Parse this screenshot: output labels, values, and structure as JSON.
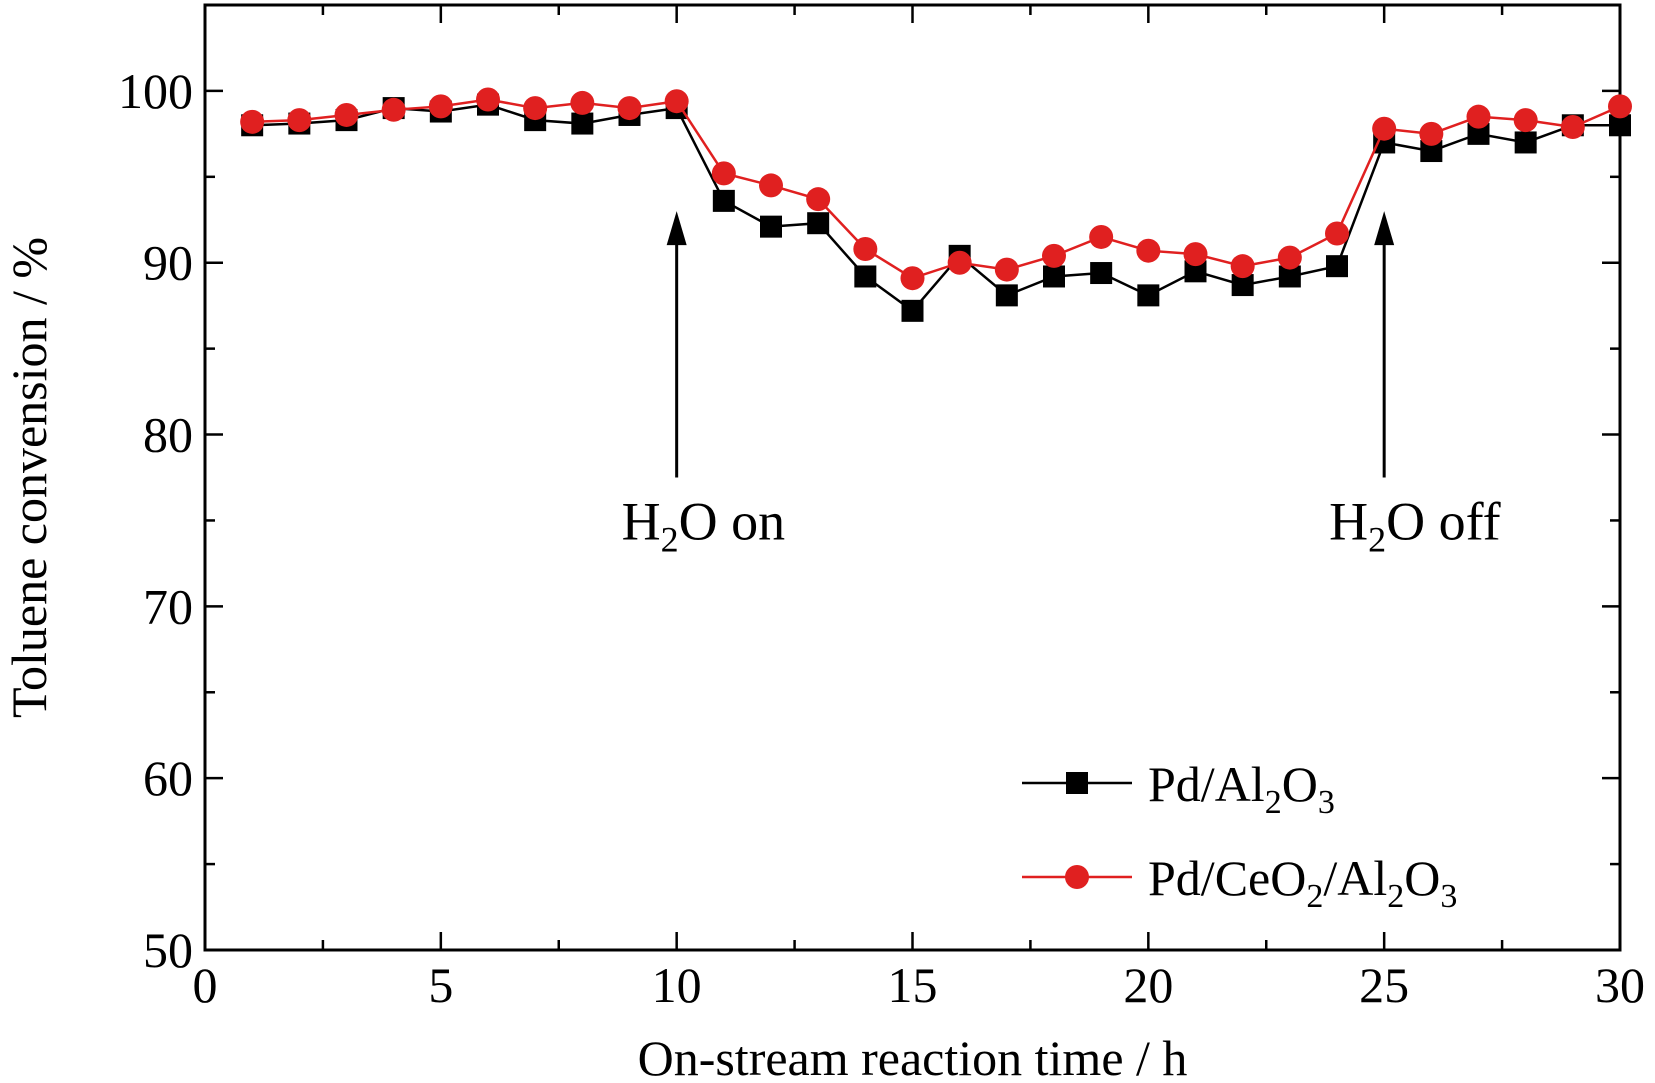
{
  "chart_data": {
    "type": "line",
    "xlabel": "On-stream reaction time / h",
    "ylabel": "Toluene convension / %",
    "xlim": [
      0,
      30
    ],
    "ylim": [
      50,
      105
    ],
    "x_ticks": [
      0,
      5,
      10,
      15,
      20,
      25,
      30
    ],
    "y_ticks": [
      50,
      60,
      70,
      80,
      90,
      100
    ],
    "x_tick_labels": [
      "0",
      "5",
      "10",
      "15",
      "20",
      "25",
      "30"
    ],
    "y_tick_labels": [
      "50",
      "60",
      "70",
      "80",
      "90",
      "100"
    ],
    "grid": false,
    "legend_position": "bottom-right",
    "x": [
      1,
      2,
      3,
      4,
      5,
      6,
      7,
      8,
      9,
      10,
      11,
      12,
      13,
      14,
      15,
      16,
      17,
      18,
      19,
      20,
      21,
      22,
      23,
      24,
      25,
      26,
      27,
      28,
      29,
      30
    ],
    "series": [
      {
        "name": "Pd/Al2O3",
        "legend_main": "Pd/Al",
        "legend_parts": [
          {
            "t": "Pd/Al",
            "sub": false
          },
          {
            "t": "2",
            "sub": true
          },
          {
            "t": "O",
            "sub": false
          },
          {
            "t": "3",
            "sub": true
          }
        ],
        "color": "#000000",
        "marker": "square",
        "values": [
          98.0,
          98.1,
          98.3,
          99.0,
          98.8,
          99.2,
          98.3,
          98.1,
          98.6,
          99.0,
          93.6,
          92.1,
          92.3,
          89.2,
          87.2,
          90.4,
          88.1,
          89.2,
          89.4,
          88.1,
          89.5,
          88.7,
          89.2,
          89.8,
          97.0,
          96.5,
          97.5,
          97.0,
          98.0,
          98.0
        ]
      },
      {
        "name": "Pd/CeO2/Al2O3",
        "legend_parts": [
          {
            "t": "Pd/CeO",
            "sub": false
          },
          {
            "t": "2",
            "sub": true
          },
          {
            "t": "/Al",
            "sub": false
          },
          {
            "t": "2",
            "sub": true
          },
          {
            "t": "O",
            "sub": false
          },
          {
            "t": "3",
            "sub": true
          }
        ],
        "color": "#e02020",
        "marker": "circle",
        "values": [
          98.2,
          98.3,
          98.6,
          98.9,
          99.1,
          99.5,
          99.0,
          99.3,
          99.0,
          99.4,
          95.2,
          94.5,
          93.7,
          90.8,
          89.1,
          90.0,
          89.6,
          90.4,
          91.5,
          90.7,
          90.5,
          89.8,
          90.3,
          91.7,
          97.8,
          97.5,
          98.5,
          98.3,
          97.9,
          99.1
        ]
      }
    ],
    "annotations": [
      {
        "id": "h2o-on",
        "x": 10,
        "arrow_tip_y": 93,
        "arrow_tail_y": 77.5,
        "label_main": "H",
        "label_sub": "2",
        "label_rest": "O on"
      },
      {
        "id": "h2o-off",
        "x": 25,
        "arrow_tip_y": 93,
        "arrow_tail_y": 77.5,
        "label_main": "H",
        "label_sub": "2",
        "label_rest": "O off"
      }
    ]
  }
}
